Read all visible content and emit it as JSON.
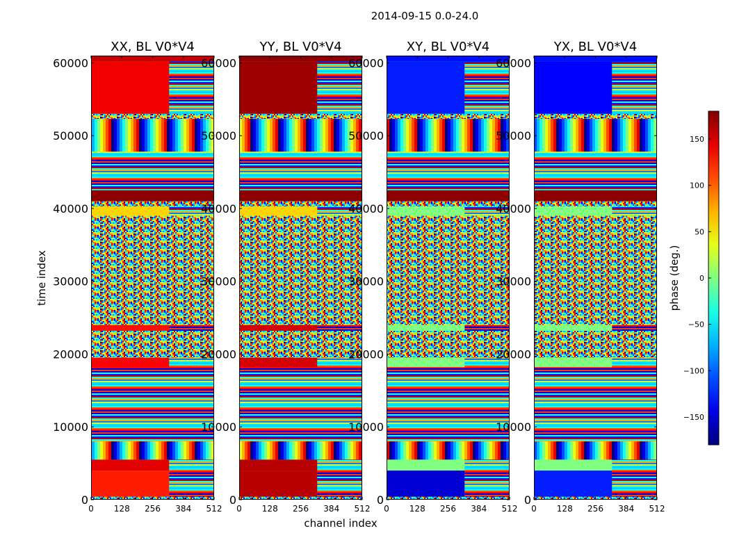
{
  "chart_data": {
    "type": "heatmap",
    "suptitle": "2014-09-15 0.0-24.0",
    "xlabel": "channel index",
    "ylabel": "time index",
    "xlim": [
      0,
      512
    ],
    "ylim": [
      0,
      61000
    ],
    "x_ticks": [
      0,
      128,
      256,
      384,
      512
    ],
    "y_ticks": [
      0,
      10000,
      20000,
      30000,
      40000,
      50000,
      60000
    ],
    "panels": [
      {
        "title": "XX, BL V0*V4",
        "type": "heatmap"
      },
      {
        "title": "YY, BL V0*V4",
        "type": "heatmap"
      },
      {
        "title": "XY, BL V0*V4",
        "type": "heatmap"
      },
      {
        "title": "YX, BL V0*V4",
        "type": "heatmap"
      }
    ],
    "colorbar": {
      "label": "phase (deg.)",
      "range": [
        -180,
        180
      ],
      "ticks": [
        -150,
        -100,
        -50,
        0,
        50,
        100,
        150
      ],
      "tick_labels": [
        "−150",
        "−100",
        "−50",
        "0",
        "50",
        "100",
        "150"
      ],
      "colormap": "jet"
    },
    "bands": [
      {
        "t0": 60200,
        "t1": 61000,
        "v": {
          "XX": 155,
          "YY": 175,
          "XY": -130,
          "YX": -130
        },
        "mode": "solid"
      },
      {
        "t0": 53000,
        "t1": 60200,
        "v": {
          "XX": 140,
          "YY": 170,
          "XY": -125,
          "YX": -135
        },
        "mode": "solid",
        "split": true
      },
      {
        "t0": 52300,
        "t1": 53000,
        "v": {
          "XX": 0,
          "YY": 0,
          "XY": 0,
          "YX": 0
        },
        "mode": "noise"
      },
      {
        "t0": 47800,
        "t1": 52300,
        "v": {
          "XX": 0,
          "YY": 0,
          "XY": 0,
          "YX": 0
        },
        "mode": "fringe"
      },
      {
        "t0": 42500,
        "t1": 47800,
        "v": {
          "XX": 0,
          "YY": 0,
          "XY": 0,
          "YX": 0
        },
        "mode": "stripes"
      },
      {
        "t0": 41000,
        "t1": 42500,
        "v": {
          "XX": 175,
          "YY": 175,
          "XY": 175,
          "YX": 175
        },
        "mode": "solid"
      },
      {
        "t0": 40300,
        "t1": 41000,
        "v": {
          "XX": 0,
          "YY": 0,
          "XY": 0,
          "YX": 0
        },
        "mode": "noise"
      },
      {
        "t0": 39000,
        "t1": 40300,
        "v": {
          "XX": 60,
          "YY": 60,
          "XY": 0,
          "YX": 0
        },
        "mode": "solid",
        "split": true
      },
      {
        "t0": 31000,
        "t1": 39000,
        "v": {
          "XX": 0,
          "YY": 0,
          "XY": 0,
          "YX": 0
        },
        "mode": "noise"
      },
      {
        "t0": 24000,
        "t1": 31000,
        "v": {
          "XX": 0,
          "YY": 0,
          "XY": 0,
          "YX": 0
        },
        "mode": "noise"
      },
      {
        "t0": 23200,
        "t1": 24000,
        "v": {
          "XX": 130,
          "YY": 150,
          "XY": 0,
          "YX": 0
        },
        "mode": "solid",
        "split": true
      },
      {
        "t0": 19500,
        "t1": 23200,
        "v": {
          "XX": 0,
          "YY": 0,
          "XY": 0,
          "YX": 0
        },
        "mode": "noise"
      },
      {
        "t0": 18200,
        "t1": 19500,
        "v": {
          "XX": 135,
          "YY": 150,
          "XY": 0,
          "YX": 0
        },
        "mode": "solid",
        "split": true
      },
      {
        "t0": 8000,
        "t1": 18200,
        "v": {
          "XX": 0,
          "YY": 0,
          "XY": 0,
          "YX": 0
        },
        "mode": "stripes"
      },
      {
        "t0": 5500,
        "t1": 8000,
        "v": {
          "XX": 0,
          "YY": 0,
          "XY": 0,
          "YX": 0
        },
        "mode": "fringe"
      },
      {
        "t0": 4000,
        "t1": 5500,
        "v": {
          "XX": 145,
          "YY": 160,
          "XY": 0,
          "YX": 0
        },
        "mode": "solid",
        "split": true
      },
      {
        "t0": 400,
        "t1": 4000,
        "v": {
          "XX": 125,
          "YY": 160,
          "XY": -150,
          "YX": -125
        },
        "mode": "solid",
        "split": true
      },
      {
        "t0": 0,
        "t1": 400,
        "v": {
          "XX": 0,
          "YY": 0,
          "XY": 0,
          "YX": 0
        },
        "mode": "noise"
      }
    ]
  }
}
